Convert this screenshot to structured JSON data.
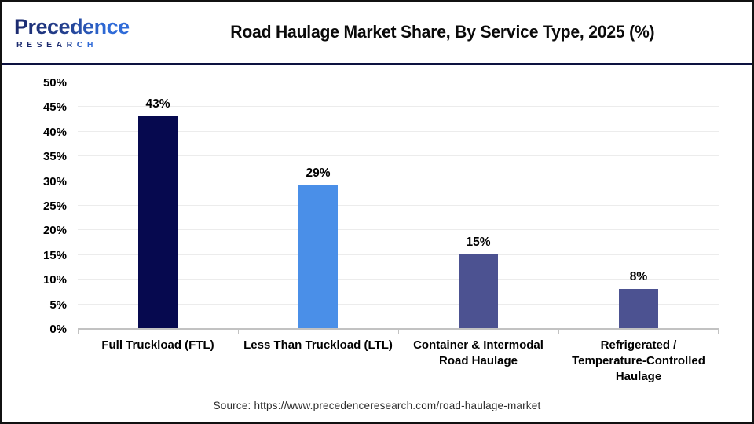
{
  "header": {
    "logo": {
      "line1": "Precedence",
      "line2": "RESEARCH"
    },
    "title": "Road Haulage Market Share, By Service Type, 2025 (%)"
  },
  "chart_data": {
    "type": "bar",
    "title": "Road Haulage Market Share, By Service Type, 2025 (%)",
    "categories": [
      "Full Truckload (FTL)",
      "Less Than Truckload (LTL)",
      "Container & Intermodal\nRoad Haulage",
      "Refrigerated /\nTemperature-Controlled\nHaulage"
    ],
    "values": [
      43,
      29,
      15,
      8
    ],
    "value_labels": [
      "43%",
      "29%",
      "15%",
      "8%"
    ],
    "bar_colors": [
      "#06094F",
      "#4A8FE8",
      "#4C5291",
      "#4C5291"
    ],
    "xlabel": "",
    "ylabel": "",
    "ylim": [
      0,
      50
    ],
    "ytick_step": 5,
    "ytick_labels": [
      "0%",
      "5%",
      "10%",
      "15%",
      "20%",
      "25%",
      "30%",
      "35%",
      "40%",
      "45%",
      "50%"
    ],
    "grid": true,
    "legend": false
  },
  "footer": {
    "source": "Source: https://www.precedenceresearch.com/road-haulage-market"
  },
  "colors": {
    "frame_border": "#111111",
    "header_divider": "#0D1240",
    "axis_line": "#C2C2C2",
    "gridline": "#ECECEC",
    "logo_dark": "#1B2A6E",
    "logo_blue": "#2F6BD8",
    "text": "#000000"
  }
}
